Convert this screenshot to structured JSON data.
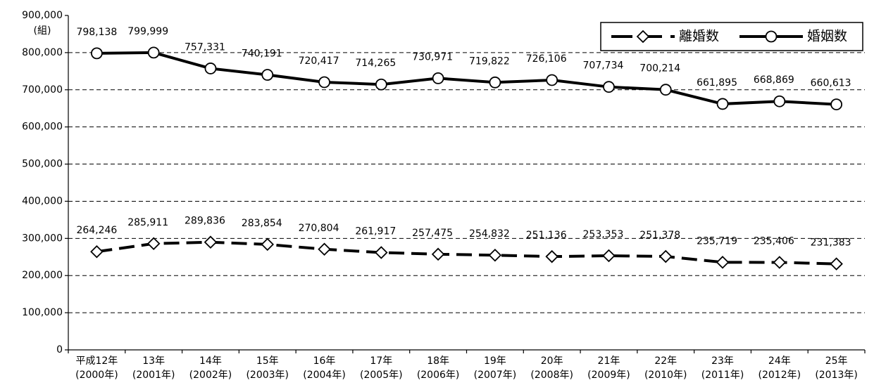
{
  "chart_data": {
    "type": "line",
    "unit_label": "(組)",
    "categories": [
      "平成12年\n(2000年)",
      "13年\n(2001年)",
      "14年\n(2002年)",
      "15年\n(2003年)",
      "16年\n(2004年)",
      "17年\n(2005年)",
      "18年\n(2006年)",
      "19年\n(2007年)",
      "20年\n(2008年)",
      "21年\n(2009年)",
      "22年\n(2010年)",
      "23年\n(2011年)",
      "24年\n(2012年)",
      "25年\n(2013年)"
    ],
    "series": [
      {
        "name": "離婚数",
        "color": "#000000",
        "dash": true,
        "marker": "diamond",
        "values": [
          264246,
          285911,
          289836,
          283854,
          270804,
          261917,
          257475,
          254832,
          251136,
          253353,
          251378,
          235719,
          235406,
          231383
        ],
        "value_labels": [
          "264,246",
          "285,911",
          "289,836",
          "283,854",
          "270,804",
          "261,917",
          "257,475",
          "254,832",
          "251,136",
          "253,353",
          "251,378",
          "235,719",
          "235,406",
          "231,383"
        ]
      },
      {
        "name": "婚姻数",
        "color": "#000000",
        "dash": false,
        "marker": "circle",
        "values": [
          798138,
          799999,
          757331,
          740191,
          720417,
          714265,
          730971,
          719822,
          726106,
          707734,
          700214,
          661895,
          668869,
          660613
        ],
        "value_labels": [
          "798,138",
          "799,999",
          "757,331",
          "740,191",
          "720,417",
          "714,265",
          "730,971",
          "719,822",
          "726,106",
          "707,734",
          "700,214",
          "661,895",
          "668,869",
          "660,613"
        ]
      }
    ],
    "ylim": [
      0,
      900000
    ],
    "yticks": [
      0,
      {
        "value": 100000,
        "label": "100,000"
      },
      {
        "value": 200000,
        "label": "200,000"
      },
      {
        "value": 300000,
        "label": "300,000"
      },
      {
        "value": 400000,
        "label": "400,000"
      },
      {
        "value": 500000,
        "label": "500,000"
      },
      {
        "value": 600000,
        "label": "600,000"
      },
      {
        "value": 700000,
        "label": "700,000"
      },
      {
        "value": 800000,
        "label": "800,000"
      },
      {
        "value": 900000,
        "label": "900,000"
      }
    ],
    "grid": true,
    "legend": "top-right"
  }
}
